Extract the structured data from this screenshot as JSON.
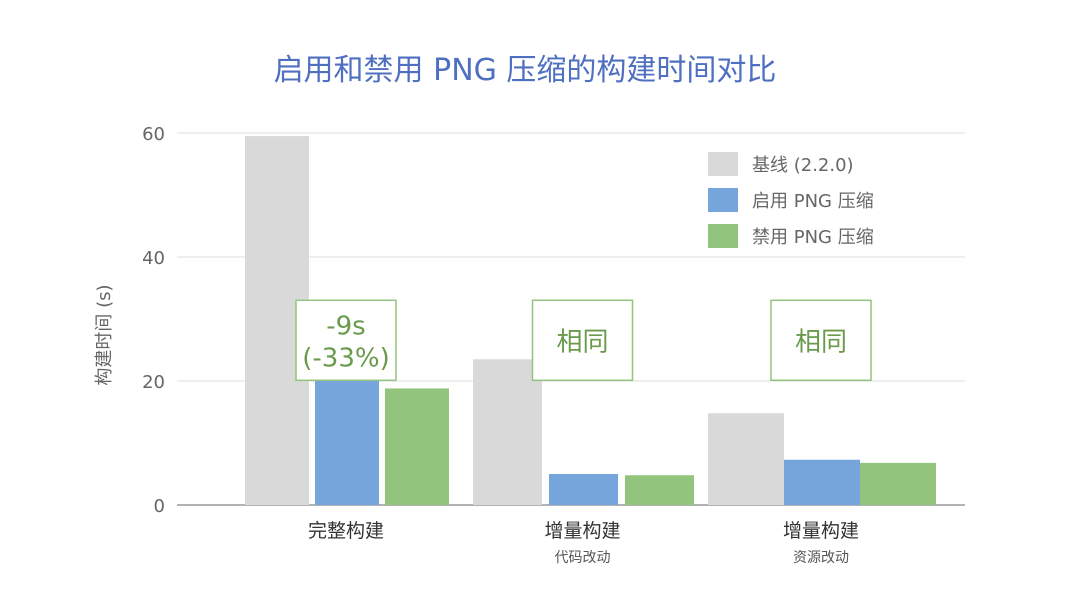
{
  "chart_data": {
    "type": "bar",
    "title": "启用和禁用 PNG 压缩的构建时间对比",
    "ylabel": "构建时间 (s)",
    "xlabel": "",
    "ylim": [
      0,
      60
    ],
    "yticks": [
      0,
      20,
      40,
      60
    ],
    "grid": true,
    "legend_position": "top-right",
    "categories": [
      {
        "label": "完整构建",
        "sublabel": ""
      },
      {
        "label": "增量构建",
        "sublabel": "代码改动"
      },
      {
        "label": "增量构建",
        "sublabel": "资源改动"
      }
    ],
    "series": [
      {
        "name": "基线 (2.2.0)",
        "color": "#d9d9d9",
        "values": [
          59.5,
          23.5,
          14.8
        ]
      },
      {
        "name": "启用 PNG 压缩",
        "color": "#76a5dc",
        "values": [
          28.2,
          5.0,
          7.3
        ]
      },
      {
        "name": "禁用 PNG 压缩",
        "color": "#93c47d",
        "values": [
          18.8,
          4.8,
          6.8
        ]
      }
    ],
    "annotations": [
      {
        "category": 0,
        "lines": [
          "-9s",
          "(-33%)"
        ],
        "value": 28.5
      },
      {
        "category": 1,
        "lines": [
          "相同"
        ],
        "value": 28.5
      },
      {
        "category": 2,
        "lines": [
          "相同"
        ],
        "value": 28.5
      }
    ],
    "colors": {
      "title": "#4f6fc1",
      "axis_text": "#666666",
      "grid": "#dddddd",
      "annotation_border": "#93c47d",
      "annotation_text": "#6a9a4c"
    }
  }
}
